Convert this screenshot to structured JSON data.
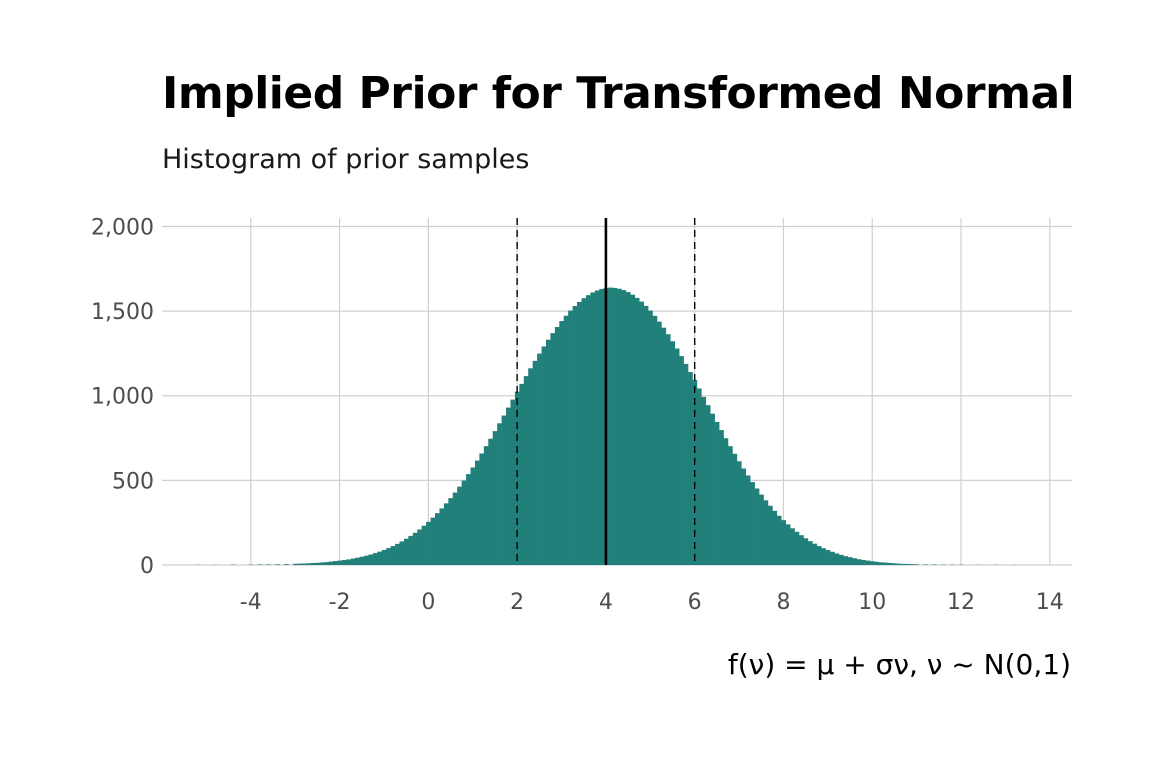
{
  "chart_data": {
    "type": "histogram",
    "title": "Implied Prior for Transformed Normal",
    "subtitle": "Histogram of prior samples",
    "xlabel": "f(ν) = μ + σν,  ν ~ N(0,1)",
    "ylabel": "",
    "xlim": [
      -6.0,
      14.5
    ],
    "ylim": [
      0,
      2050
    ],
    "x_ticks": [
      -4,
      -2,
      0,
      2,
      4,
      6,
      8,
      10,
      12,
      14
    ],
    "x_tick_labels": [
      "-4",
      "-2",
      "0",
      "2",
      "4",
      "6",
      "8",
      "10",
      "12",
      "14"
    ],
    "y_ticks": [
      0,
      500,
      1000,
      1500,
      2000
    ],
    "y_tick_labels": [
      "0",
      "500",
      "1,000",
      "1,500",
      "2,000"
    ],
    "grid": true,
    "bin_width": 0.1,
    "bar_color": "#21807a",
    "bins": [
      {
        "x": -5.2,
        "count": 1
      },
      {
        "x": -4.8,
        "count": 1
      },
      {
        "x": -4.4,
        "count": 2
      },
      {
        "x": -4.0,
        "count": 2
      },
      {
        "x": -3.8,
        "count": 3
      },
      {
        "x": -3.6,
        "count": 3
      },
      {
        "x": -3.4,
        "count": 4
      },
      {
        "x": -3.2,
        "count": 5
      },
      {
        "x": -3.0,
        "count": 7
      },
      {
        "x": -2.9,
        "count": 8
      },
      {
        "x": -2.8,
        "count": 9
      },
      {
        "x": -2.7,
        "count": 10
      },
      {
        "x": -2.6,
        "count": 12
      },
      {
        "x": -2.5,
        "count": 13
      },
      {
        "x": -2.4,
        "count": 15
      },
      {
        "x": -2.3,
        "count": 17
      },
      {
        "x": -2.2,
        "count": 20
      },
      {
        "x": -2.1,
        "count": 23
      },
      {
        "x": -2.0,
        "count": 26
      },
      {
        "x": -1.9,
        "count": 29
      },
      {
        "x": -1.8,
        "count": 33
      },
      {
        "x": -1.7,
        "count": 38
      },
      {
        "x": -1.6,
        "count": 43
      },
      {
        "x": -1.5,
        "count": 49
      },
      {
        "x": -1.4,
        "count": 55
      },
      {
        "x": -1.3,
        "count": 62
      },
      {
        "x": -1.2,
        "count": 70
      },
      {
        "x": -1.1,
        "count": 79
      },
      {
        "x": -1.0,
        "count": 89
      },
      {
        "x": -0.9,
        "count": 100
      },
      {
        "x": -0.8,
        "count": 112
      },
      {
        "x": -0.7,
        "count": 125
      },
      {
        "x": -0.6,
        "count": 139
      },
      {
        "x": -0.5,
        "count": 155
      },
      {
        "x": -0.4,
        "count": 172
      },
      {
        "x": -0.3,
        "count": 190
      },
      {
        "x": -0.2,
        "count": 210
      },
      {
        "x": -0.1,
        "count": 232
      },
      {
        "x": 0.0,
        "count": 255
      },
      {
        "x": 0.1,
        "count": 280
      },
      {
        "x": 0.2,
        "count": 306
      },
      {
        "x": 0.3,
        "count": 334
      },
      {
        "x": 0.4,
        "count": 364
      },
      {
        "x": 0.5,
        "count": 395
      },
      {
        "x": 0.6,
        "count": 428
      },
      {
        "x": 0.7,
        "count": 463
      },
      {
        "x": 0.8,
        "count": 499
      },
      {
        "x": 0.9,
        "count": 537
      },
      {
        "x": 1.0,
        "count": 576
      },
      {
        "x": 1.1,
        "count": 617
      },
      {
        "x": 1.2,
        "count": 659
      },
      {
        "x": 1.3,
        "count": 702
      },
      {
        "x": 1.4,
        "count": 746
      },
      {
        "x": 1.5,
        "count": 791
      },
      {
        "x": 1.6,
        "count": 837
      },
      {
        "x": 1.7,
        "count": 883
      },
      {
        "x": 1.8,
        "count": 930
      },
      {
        "x": 1.9,
        "count": 977
      },
      {
        "x": 2.0,
        "count": 1024
      },
      {
        "x": 2.1,
        "count": 1070
      },
      {
        "x": 2.2,
        "count": 1116
      },
      {
        "x": 2.3,
        "count": 1162
      },
      {
        "x": 2.4,
        "count": 1206
      },
      {
        "x": 2.5,
        "count": 1249
      },
      {
        "x": 2.6,
        "count": 1291
      },
      {
        "x": 2.7,
        "count": 1331
      },
      {
        "x": 2.8,
        "count": 1370
      },
      {
        "x": 2.9,
        "count": 1406
      },
      {
        "x": 3.0,
        "count": 1441
      },
      {
        "x": 3.1,
        "count": 1473
      },
      {
        "x": 3.2,
        "count": 1503
      },
      {
        "x": 3.3,
        "count": 1530
      },
      {
        "x": 3.4,
        "count": 1554
      },
      {
        "x": 3.5,
        "count": 1576
      },
      {
        "x": 3.6,
        "count": 1594
      },
      {
        "x": 3.7,
        "count": 1610
      },
      {
        "x": 3.8,
        "count": 1622
      },
      {
        "x": 3.9,
        "count": 1631
      },
      {
        "x": 4.0,
        "count": 1637
      },
      {
        "x": 4.1,
        "count": 1639
      },
      {
        "x": 4.2,
        "count": 1637
      },
      {
        "x": 4.3,
        "count": 1632
      },
      {
        "x": 4.4,
        "count": 1624
      },
      {
        "x": 4.5,
        "count": 1612
      },
      {
        "x": 4.6,
        "count": 1597
      },
      {
        "x": 4.7,
        "count": 1578
      },
      {
        "x": 4.8,
        "count": 1556
      },
      {
        "x": 4.9,
        "count": 1531
      },
      {
        "x": 5.0,
        "count": 1503
      },
      {
        "x": 5.1,
        "count": 1472
      },
      {
        "x": 5.2,
        "count": 1438
      },
      {
        "x": 5.3,
        "count": 1402
      },
      {
        "x": 5.4,
        "count": 1363
      },
      {
        "x": 5.5,
        "count": 1322
      },
      {
        "x": 5.6,
        "count": 1279
      },
      {
        "x": 5.7,
        "count": 1234
      },
      {
        "x": 5.8,
        "count": 1188
      },
      {
        "x": 5.9,
        "count": 1140
      },
      {
        "x": 6.0,
        "count": 1092
      },
      {
        "x": 6.1,
        "count": 1043
      },
      {
        "x": 6.2,
        "count": 993
      },
      {
        "x": 6.3,
        "count": 944
      },
      {
        "x": 6.4,
        "count": 894
      },
      {
        "x": 6.5,
        "count": 845
      },
      {
        "x": 6.6,
        "count": 797
      },
      {
        "x": 6.7,
        "count": 749
      },
      {
        "x": 6.8,
        "count": 702
      },
      {
        "x": 6.9,
        "count": 657
      },
      {
        "x": 7.0,
        "count": 613
      },
      {
        "x": 7.1,
        "count": 570
      },
      {
        "x": 7.2,
        "count": 529
      },
      {
        "x": 7.3,
        "count": 490
      },
      {
        "x": 7.4,
        "count": 452
      },
      {
        "x": 7.5,
        "count": 416
      },
      {
        "x": 7.6,
        "count": 382
      },
      {
        "x": 7.7,
        "count": 350
      },
      {
        "x": 7.8,
        "count": 320
      },
      {
        "x": 7.9,
        "count": 291
      },
      {
        "x": 8.0,
        "count": 265
      },
      {
        "x": 8.1,
        "count": 240
      },
      {
        "x": 8.2,
        "count": 217
      },
      {
        "x": 8.3,
        "count": 196
      },
      {
        "x": 8.4,
        "count": 176
      },
      {
        "x": 8.5,
        "count": 158
      },
      {
        "x": 8.6,
        "count": 141
      },
      {
        "x": 8.7,
        "count": 126
      },
      {
        "x": 8.8,
        "count": 112
      },
      {
        "x": 8.9,
        "count": 99
      },
      {
        "x": 9.0,
        "count": 88
      },
      {
        "x": 9.1,
        "count": 78
      },
      {
        "x": 9.2,
        "count": 68
      },
      {
        "x": 9.3,
        "count": 60
      },
      {
        "x": 9.4,
        "count": 52
      },
      {
        "x": 9.5,
        "count": 46
      },
      {
        "x": 9.6,
        "count": 40
      },
      {
        "x": 9.7,
        "count": 34
      },
      {
        "x": 9.8,
        "count": 30
      },
      {
        "x": 9.9,
        "count": 26
      },
      {
        "x": 10.0,
        "count": 22
      },
      {
        "x": 10.1,
        "count": 19
      },
      {
        "x": 10.2,
        "count": 16
      },
      {
        "x": 10.3,
        "count": 14
      },
      {
        "x": 10.4,
        "count": 12
      },
      {
        "x": 10.5,
        "count": 10
      },
      {
        "x": 10.6,
        "count": 8
      },
      {
        "x": 10.7,
        "count": 7
      },
      {
        "x": 10.8,
        "count": 6
      },
      {
        "x": 10.9,
        "count": 5
      },
      {
        "x": 11.0,
        "count": 4
      },
      {
        "x": 11.2,
        "count": 3
      },
      {
        "x": 11.4,
        "count": 3
      },
      {
        "x": 11.6,
        "count": 2
      },
      {
        "x": 11.8,
        "count": 2
      },
      {
        "x": 12.0,
        "count": 2
      },
      {
        "x": 12.4,
        "count": 1
      },
      {
        "x": 12.8,
        "count": 1
      },
      {
        "x": 13.2,
        "count": 1
      }
    ],
    "vlines": [
      {
        "x": 2,
        "style": "dashed"
      },
      {
        "x": 4,
        "style": "solid"
      },
      {
        "x": 6,
        "style": "dashed"
      }
    ]
  }
}
